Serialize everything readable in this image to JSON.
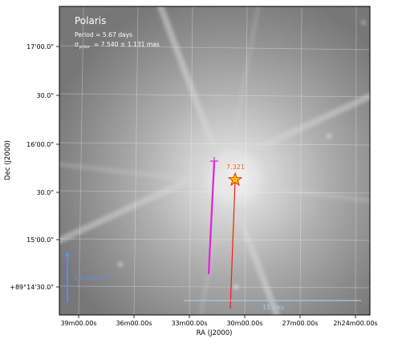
{
  "panel": {
    "title": "Polaris",
    "period_line": "Period =   5.67 days",
    "sigma_symbol": "σ",
    "sigma_subscript": "prior",
    "sigma_value": " = 7.540 ± 1.131 mas"
  },
  "axes": {
    "xlabel": "RA (J2000)",
    "ylabel": "Dec (J2000)",
    "xticks": [
      "39m00.00s",
      "36m00.00s",
      "33m00.00s",
      "30m00.00s",
      "27m00.00s",
      "2h24m00.00s"
    ],
    "yticks": [
      "17'00.0\"",
      "30.0\"",
      "16'00.0\"",
      "30.0\"",
      "15'00.0\"",
      "+89°14'30.0\""
    ],
    "grid": true
  },
  "annotations": {
    "epoch_label": "7.321",
    "motion_scale_label": "5.0 mas a",
    "motion_scale_exp": "−1",
    "distance_scale_label": "15 kau"
  },
  "colors": {
    "star_marker": "#ffc400",
    "star_edge": "#e02000",
    "prior_track": "#dd22dd",
    "orbit_track": "#ee2200",
    "epoch_label": "#ff5a1e",
    "scale_bar": "#5f8fe8",
    "distance_bar": "#aec8e8",
    "grid": "#ffffff"
  },
  "icons": {
    "star_marker": "star-marker-icon",
    "scale_arrow": "arrow-up-icon"
  }
}
